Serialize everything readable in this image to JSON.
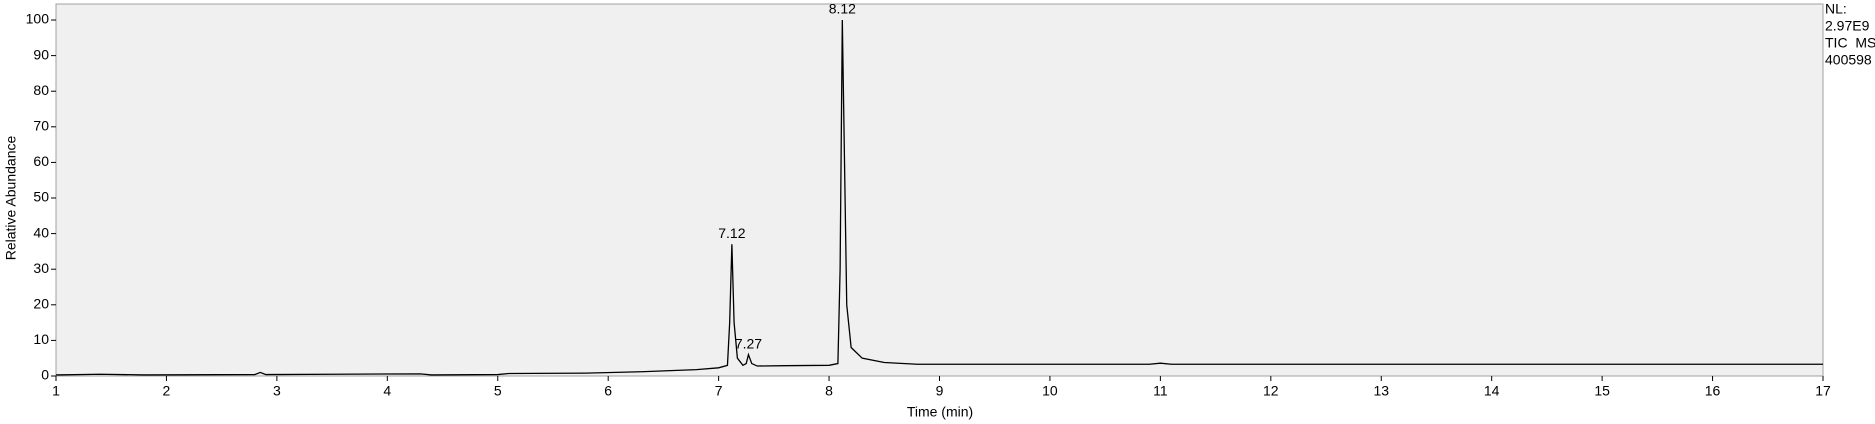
{
  "chart_data": {
    "type": "line",
    "x_label": "Time (min)",
    "y_label": "Relative Abundance",
    "info": [
      "NL:",
      "2.97E9",
      "TIC  MS",
      "400598"
    ],
    "x": [
      1.0,
      1.4,
      1.8,
      2.8,
      2.85,
      2.9,
      3.5,
      4.3,
      4.4,
      5.0,
      5.1,
      5.8,
      6.3,
      6.8,
      7.0,
      7.08,
      7.1,
      7.12,
      7.14,
      7.17,
      7.22,
      7.25,
      7.27,
      7.3,
      7.35,
      7.6,
      8.0,
      8.08,
      8.1,
      8.12,
      8.14,
      8.16,
      8.2,
      8.3,
      8.5,
      8.8,
      10.9,
      11.0,
      11.1,
      17.0
    ],
    "values": [
      0.3,
      0.5,
      0.3,
      0.4,
      1.0,
      0.4,
      0.5,
      0.6,
      0.3,
      0.4,
      0.7,
      0.8,
      1.2,
      1.8,
      2.3,
      3.0,
      15,
      37,
      15,
      5,
      3.0,
      3.5,
      6,
      3.5,
      2.8,
      2.9,
      3.0,
      3.5,
      30,
      100,
      60,
      20,
      8,
      5,
      3.8,
      3.3,
      3.3,
      3.6,
      3.3,
      3.3
    ],
    "color": "#000000",
    "peak_labels": [
      {
        "x": 7.12,
        "y": 37
      },
      {
        "x": 7.27,
        "y": 6
      },
      {
        "x": 8.12,
        "y": 100
      }
    ],
    "xlim": [
      1,
      17
    ],
    "xticks": [
      1,
      2,
      3,
      4,
      5,
      6,
      7,
      8,
      9,
      10,
      11,
      12,
      13,
      14,
      15,
      16,
      17
    ],
    "ylim": [
      0,
      104.5
    ],
    "yticks": [
      0,
      10,
      20,
      30,
      40,
      50,
      60,
      70,
      80,
      90,
      100
    ]
  }
}
